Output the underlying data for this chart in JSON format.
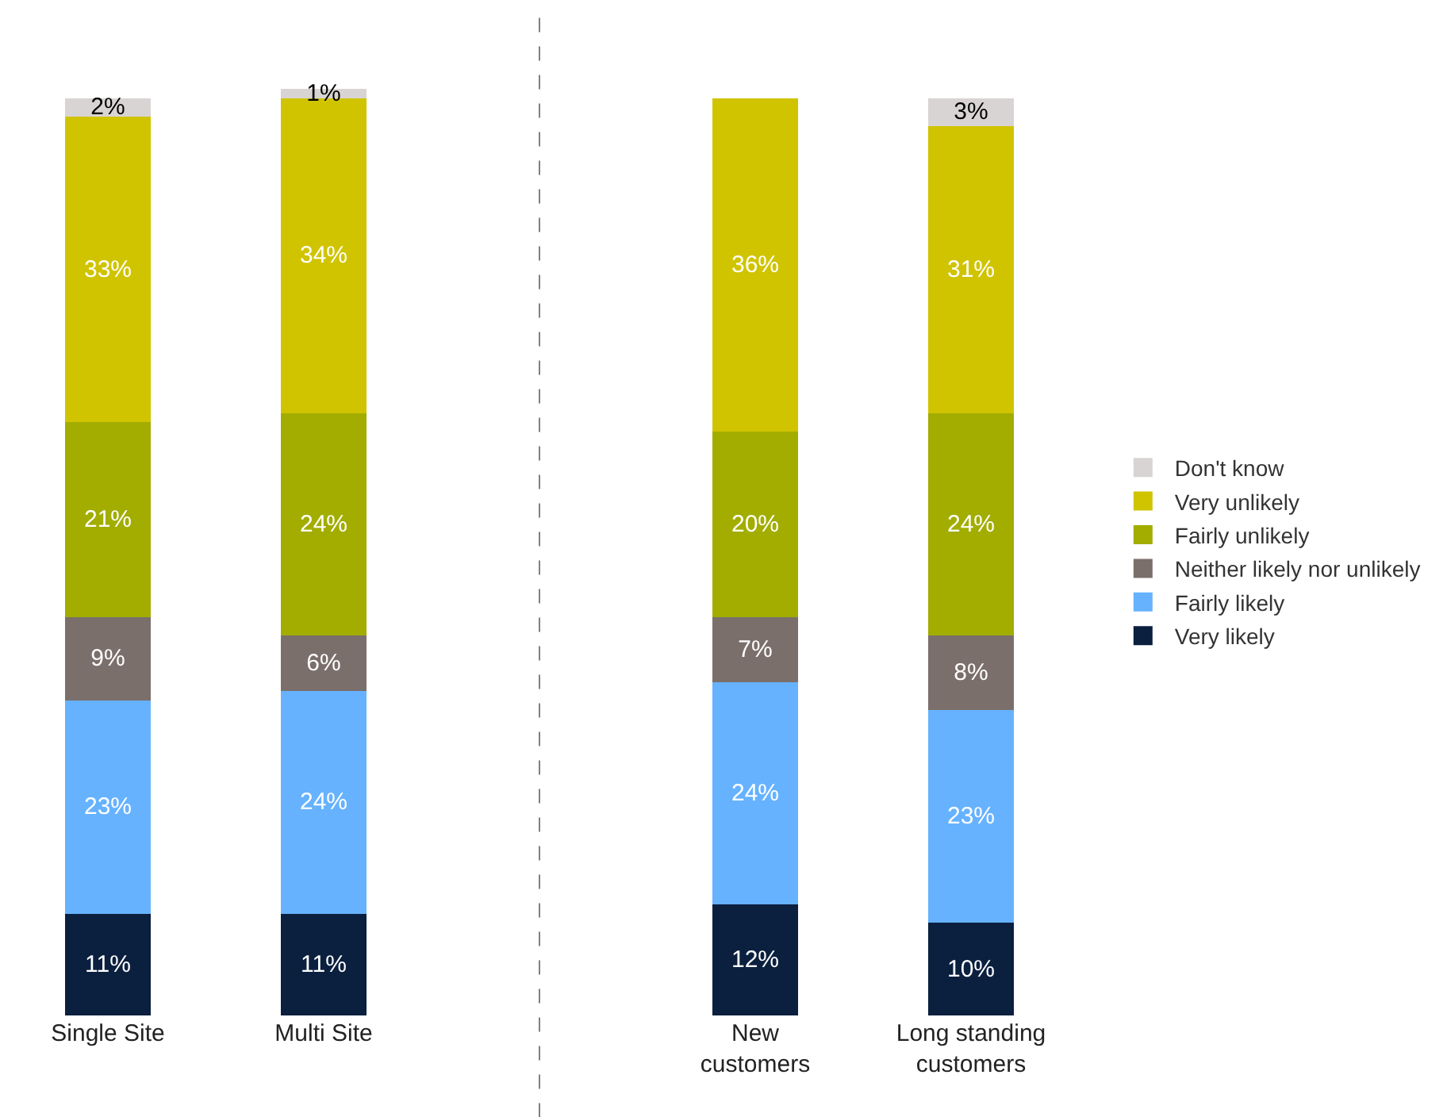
{
  "chart_data": {
    "type": "bar",
    "stacked": true,
    "legend": "right",
    "categories": [
      "Single Site",
      "Multi Site",
      null,
      "New\ncustomers",
      "Long standing\ncustomers"
    ],
    "series": [
      {
        "name": "Very likely",
        "color": "#0b1f3f",
        "values": [
          11,
          11,
          null,
          12,
          10
        ],
        "value_labels": [
          "11%",
          "11%",
          null,
          "12%",
          "10%"
        ]
      },
      {
        "name": "Fairly likely",
        "color": "#66b2ff",
        "values": [
          23,
          24,
          null,
          24,
          23
        ],
        "value_labels": [
          "23%",
          "24%",
          null,
          "24%",
          "23%"
        ]
      },
      {
        "name": "Neither likely nor unlikely",
        "color": "#7b6f6b",
        "values": [
          9,
          6,
          null,
          7,
          8
        ],
        "value_labels": [
          "9%",
          "6%",
          null,
          "7%",
          "8%"
        ]
      },
      {
        "name": "Fairly unlikely",
        "color": "#a2ad00",
        "values": [
          21,
          24,
          null,
          20,
          24
        ],
        "value_labels": [
          "21%",
          "24%",
          null,
          "20%",
          "24%"
        ]
      },
      {
        "name": "Very unlikely",
        "color": "#d0c400",
        "values": [
          33,
          34,
          null,
          36,
          31
        ],
        "value_labels": [
          "33%",
          "34%",
          null,
          "36%",
          "31%"
        ]
      },
      {
        "name": "Don't know",
        "color": "#d9d4d4",
        "values": [
          2,
          1,
          null,
          null,
          3
        ],
        "value_labels": [
          "2%",
          "1%",
          null,
          null,
          "3%"
        ]
      }
    ]
  }
}
